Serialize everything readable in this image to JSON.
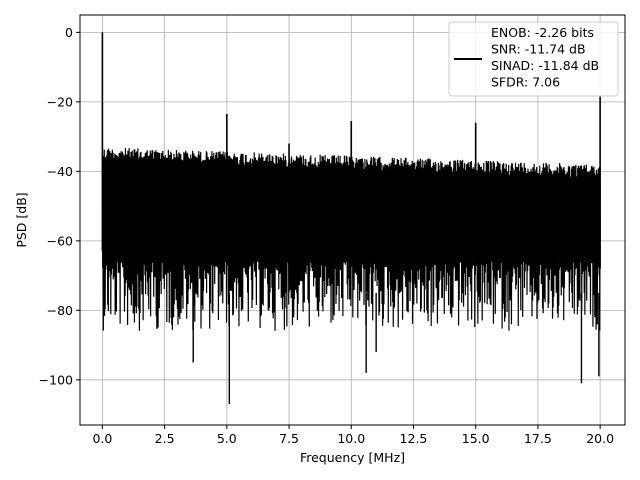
{
  "chart_data": {
    "type": "line",
    "title": "",
    "xlabel": "Frequency [MHz]",
    "ylabel": "PSD [dB]",
    "xlim": [
      -0.9,
      21.0
    ],
    "ylim": [
      -113,
      5
    ],
    "grid": true,
    "x_ticks": [
      0.0,
      2.5,
      5.0,
      7.5,
      10.0,
      12.5,
      15.0,
      17.5,
      20.0
    ],
    "x_tick_labels": [
      "0.0",
      "2.5",
      "5.0",
      "7.5",
      "10.0",
      "12.5",
      "15.0",
      "17.5",
      "20.0"
    ],
    "y_ticks": [
      0,
      -20,
      -40,
      -60,
      -80,
      -100
    ],
    "y_tick_labels": [
      "0",
      "−20",
      "−40",
      "−60",
      "−80",
      "−100"
    ],
    "legend_position": "top-right",
    "legend_lines": [
      "ENOB: -2.26 bits",
      "SNR: -11.74 dB",
      "SINAD: -11.84 dB",
      "SFDR: 7.06"
    ],
    "series": [
      {
        "color": "#000000",
        "x_range": [
          0.0,
          20.0
        ],
        "noise_ceiling_start": -33,
        "noise_ceiling_end": -38,
        "noise_floor_typical": -80,
        "spurs": [
          {
            "x": 0.0,
            "y": 0
          },
          {
            "x": 5.0,
            "y": -23.5
          },
          {
            "x": 7.5,
            "y": -32
          },
          {
            "x": 10.0,
            "y": -25.5
          },
          {
            "x": 15.0,
            "y": -26
          },
          {
            "x": 20.0,
            "y": -18.5
          }
        ],
        "deep_nulls": [
          {
            "x": 3.65,
            "y": -95
          },
          {
            "x": 5.1,
            "y": -107
          },
          {
            "x": 10.6,
            "y": -98
          },
          {
            "x": 11.0,
            "y": -92
          },
          {
            "x": 19.25,
            "y": -101
          },
          {
            "x": 19.95,
            "y": -99
          }
        ]
      }
    ]
  }
}
